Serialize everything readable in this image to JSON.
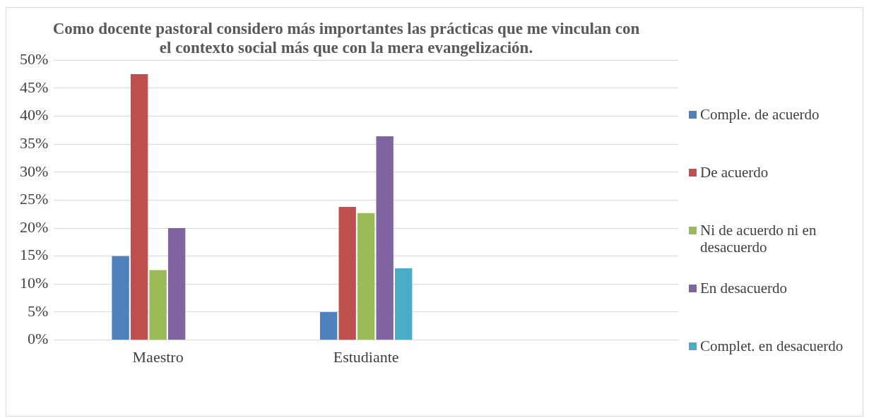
{
  "chart_data": {
    "type": "bar",
    "title": "Como docente pastoral considero más importantes las prácticas que me vinculan con el contexto social más que con la mera evangelización.",
    "categories": [
      "Maestro",
      "Estudiante",
      null
    ],
    "series": [
      {
        "name": "Comple. de acuerdo",
        "color": "#4f81bd",
        "values": [
          15,
          5,
          null
        ]
      },
      {
        "name": "De acuerdo",
        "color": "#c0504d",
        "values": [
          47.5,
          23.8,
          null
        ]
      },
      {
        "name": "Ni de acuerdo ni en desacuerdo",
        "color": "#9bbb59",
        "values": [
          12.5,
          22.7,
          null
        ]
      },
      {
        "name": "En desacuerdo",
        "color": "#8064a2",
        "values": [
          20,
          36.4,
          null
        ]
      },
      {
        "name": "Complet. en desacuerdo",
        "color": "#4bacc6",
        "values": [
          0,
          12.8,
          null
        ]
      }
    ],
    "ylim": [
      0,
      50
    ],
    "yticks": [
      {
        "value": 0,
        "label": "0%"
      },
      {
        "value": 5,
        "label": "5%"
      },
      {
        "value": 10,
        "label": "10%"
      },
      {
        "value": 15,
        "label": "15%"
      },
      {
        "value": 20,
        "label": "20%"
      },
      {
        "value": 25,
        "label": "25%"
      },
      {
        "value": 30,
        "label": "30%"
      },
      {
        "value": 35,
        "label": "35%"
      },
      {
        "value": 40,
        "label": "40%"
      },
      {
        "value": 45,
        "label": "45%"
      },
      {
        "value": 50,
        "label": "50%"
      }
    ],
    "grid": "y",
    "legend": "right"
  }
}
